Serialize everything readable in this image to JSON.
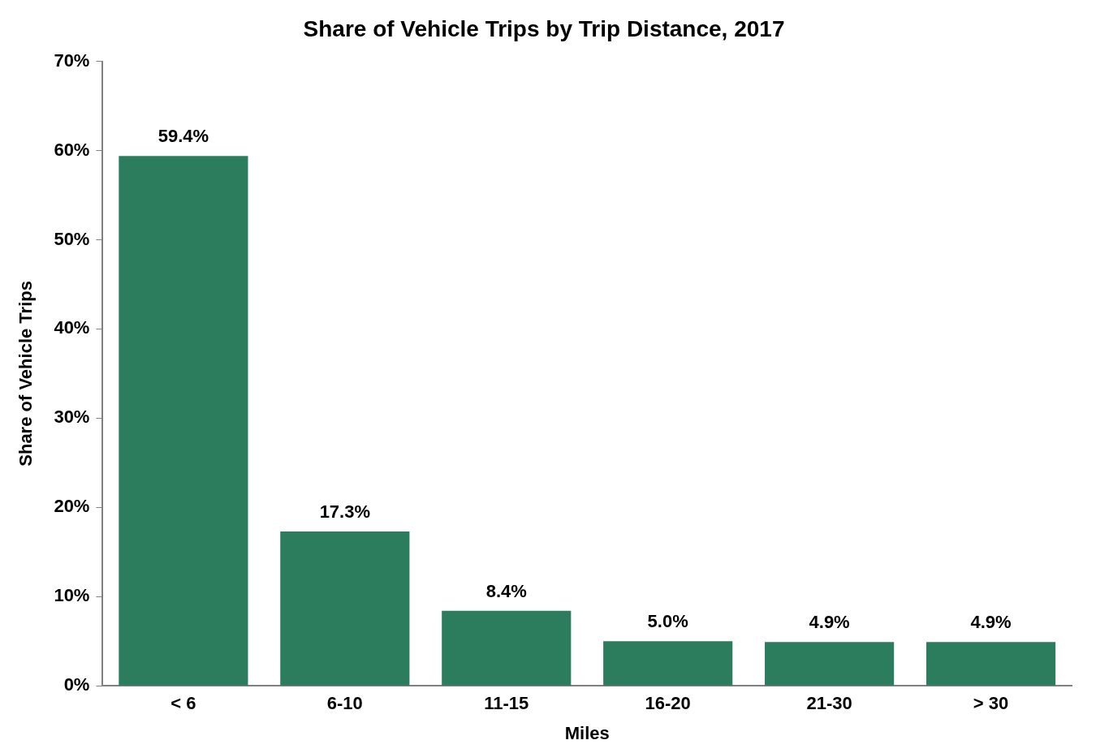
{
  "chart_data": {
    "type": "bar",
    "title": "Share of Vehicle Trips by Trip Distance, 2017",
    "x_label": "Miles",
    "y_label": "Share of Vehicle Trips",
    "categories": [
      "< 6",
      "6-10",
      "11-15",
      "16-20",
      "21-30",
      "> 30"
    ],
    "values": [
      59.4,
      17.3,
      8.4,
      5.0,
      4.9,
      4.9
    ],
    "value_labels": [
      "59.4%",
      "17.3%",
      "8.4%",
      "5.0%",
      "4.9%",
      "4.9%"
    ],
    "color": "#2b7d5e",
    "ylim": [
      0,
      70
    ],
    "yticks": [
      {
        "value": 0,
        "label": "0%"
      },
      {
        "value": 10,
        "label": "10%"
      },
      {
        "value": 20,
        "label": "20%"
      },
      {
        "value": 30,
        "label": "30%"
      },
      {
        "value": 40,
        "label": "40%"
      },
      {
        "value": 50,
        "label": "50%"
      },
      {
        "value": 60,
        "label": "60%"
      },
      {
        "value": 70,
        "label": "70%"
      }
    ],
    "grid": false,
    "data_labels": true
  }
}
